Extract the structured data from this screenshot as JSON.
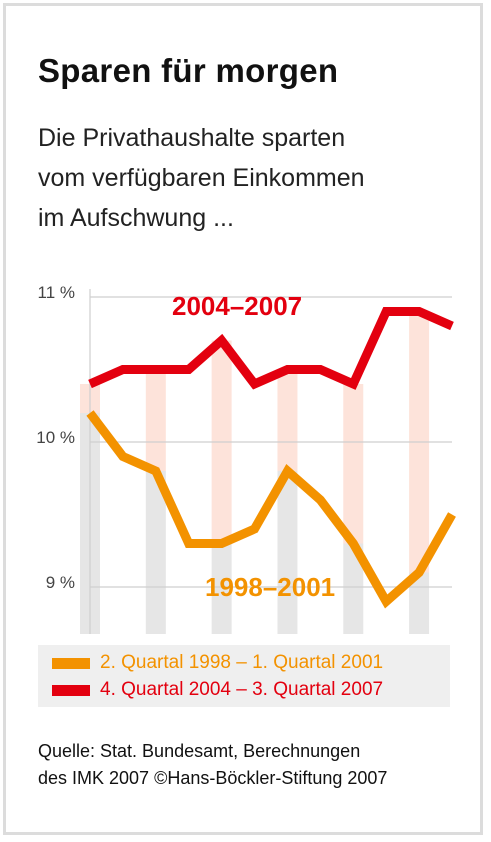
{
  "title": "Sparen für morgen",
  "subtitle_lines": [
    "Die Privathaushalte sparten",
    "vom verfügbaren Einkommen",
    "im Aufschwung ..."
  ],
  "source_lines": [
    "Quelle: Stat. Bundesamt, Berechnungen",
    "des IMK 2007 ©Hans-Böckler-Stiftung 2007"
  ],
  "colors": {
    "series_2004": "#e3000f",
    "series_1998": "#f39200",
    "fill_light": "#fde3da",
    "bar_grey": "#e6e6e6",
    "grid": "#cfcfcf"
  },
  "chart_data": {
    "type": "line",
    "y_ticks": [
      9,
      10,
      11
    ],
    "y_tick_labels": [
      "9 %",
      "10 %",
      "11 %"
    ],
    "ylim": [
      8.6,
      11.1
    ],
    "points_per_series": 12,
    "grid": true,
    "series": [
      {
        "name": "2004–2007",
        "legend": "4. Quartal 2004 – 3. Quartal 2007",
        "color": "#e3000f",
        "values": [
          10.4,
          10.5,
          10.5,
          10.5,
          10.7,
          10.4,
          10.5,
          10.5,
          10.4,
          10.9,
          10.9,
          10.8
        ]
      },
      {
        "name": "1998–2001",
        "legend": "2. Quartal 1998 – 1. Quartal 2001",
        "color": "#f39200",
        "values": [
          10.2,
          9.9,
          9.8,
          9.3,
          9.3,
          9.4,
          9.8,
          9.6,
          9.3,
          8.9,
          9.1,
          9.5
        ]
      }
    ],
    "legend_order": [
      1,
      0
    ]
  }
}
